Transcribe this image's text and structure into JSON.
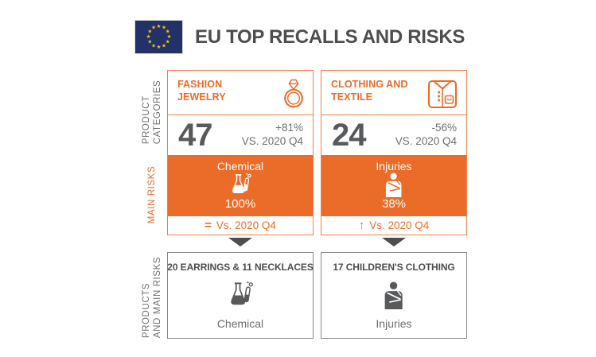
{
  "header": {
    "title": "EU TOP RECALLS AND RISKS"
  },
  "row_labels": {
    "product_categories": {
      "line1": "PRODUCT",
      "line2": "CATEGORIES"
    },
    "main_risks": "MAIN RISKS",
    "products_and_main_risks": {
      "line1": "PRODUCTS",
      "line2": "AND MAIN RISKS"
    }
  },
  "colors": {
    "accent": "#EB6B28",
    "accent_border": "#F08048",
    "dark_text": "#4D4D4D",
    "number_text": "#58595B",
    "muted_text": "#6D6E71",
    "flag_blue": "#233168",
    "flag_star": "#FFCC00"
  },
  "chart_data": {
    "type": "table",
    "title": "EU TOP RECALLS AND RISKS",
    "rows": [
      "PRODUCT CATEGORIES",
      "MAIN RISKS",
      "PRODUCTS AND MAIN RISKS"
    ],
    "columns": [
      {
        "category": "FASHION JEWELRY",
        "recalls": 47,
        "change_vs_2020_q4_pct": 81,
        "main_risk": "Chemical",
        "main_risk_share_pct": 100,
        "risk_trend_vs_2020_q4": "equal",
        "top_products": "20 EARRINGS & 11 NECKLACES",
        "product_risk": "Chemical"
      },
      {
        "category": "CLOTHING AND TEXTILE",
        "recalls": 24,
        "change_vs_2020_q4_pct": -56,
        "main_risk": "Injuries",
        "main_risk_share_pct": 38,
        "risk_trend_vs_2020_q4": "up",
        "top_products": "17 CHILDREN'S CLOTHING",
        "product_risk": "Injuries"
      }
    ]
  },
  "columns": [
    {
      "category": "FASHION JEWELRY",
      "category_icon": "ring-icon",
      "count": "47",
      "change": "+81%",
      "change_reference": "VS. 2020 Q4",
      "risk": {
        "label": "Chemical",
        "icon": "chemical-flask-icon",
        "percent": "100%"
      },
      "trend": {
        "symbol": "=",
        "meaning": "equal",
        "label": "Vs. 2020 Q4"
      },
      "products": {
        "label": "20 EARRINGS & 11 NECKLACES",
        "icon": "chemical-flask-icon",
        "risk_label": "Chemical"
      }
    },
    {
      "category": "CLOTHING AND TEXTILE",
      "category_icon": "shirt-icon",
      "count": "24",
      "change": "-56%",
      "change_reference": "VS. 2020 Q4",
      "risk": {
        "label": "Injuries",
        "icon": "injured-person-icon",
        "percent": "38%"
      },
      "trend": {
        "symbol": "↑",
        "meaning": "up",
        "label": "Vs. 2020 Q4"
      },
      "products": {
        "label": "17 CHILDREN'S CLOTHING",
        "icon": "injured-person-icon",
        "risk_label": "Injuries"
      }
    }
  ]
}
